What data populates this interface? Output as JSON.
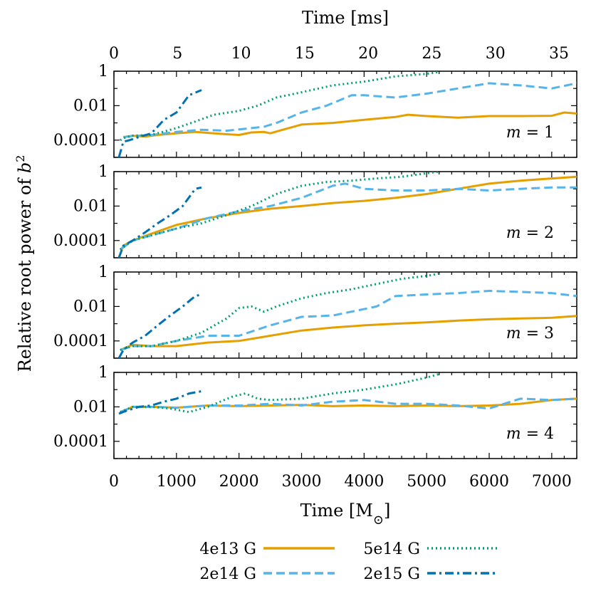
{
  "chart_data": {
    "type": "line",
    "top_axis": {
      "label": "Time [ms]",
      "ticks": [
        "0",
        "5",
        "10",
        "15",
        "20",
        "25",
        "30",
        "35"
      ],
      "range_ms": [
        0,
        36.4
      ]
    },
    "bottom_axis": {
      "label_prefix": "Time [M",
      "label_suffix": "]",
      "label_subscript": "⊙",
      "ticks": [
        "0",
        "1000",
        "2000",
        "3000",
        "4000",
        "5000",
        "6000",
        "7000"
      ],
      "xlim": [
        0,
        7400
      ]
    },
    "ylabel_prefix": "Relative root power of ",
    "ylabel_var": "b",
    "ylabel_sup": "2",
    "y_scale": "log",
    "ylim": [
      1e-05,
      1
    ],
    "y_ticks": [
      "1",
      "0.01",
      "0.0001"
    ],
    "series_meta": [
      {
        "name": "4e13 G",
        "color": "#E69F00",
        "dash": "solid"
      },
      {
        "name": "2e14 G",
        "color": "#56B4E9",
        "dash": "dashed"
      },
      {
        "name": "5e14 G",
        "color": "#009E73",
        "dash": "dotted"
      },
      {
        "name": "2e15 G",
        "color": "#0072B2",
        "dash": "dashdot"
      }
    ],
    "panels": [
      {
        "label_var": "m",
        "label_value": " = 1",
        "series": [
          {
            "name": "4e13 G",
            "x": [
              150,
              300,
              500,
              700,
              1000,
              1300,
              1600,
              1800,
              2000,
              2200,
              2400,
              2500,
              2700,
              3000,
              3500,
              4000,
              4500,
              4700,
              5000,
              5500,
              6000,
              6500,
              7000,
              7200,
              7400
            ],
            "y": [
              0.00015,
              0.00018,
              0.00016,
              0.0002,
              0.00025,
              0.0003,
              0.00025,
              0.00022,
              0.0002,
              0.00028,
              0.0003,
              0.00025,
              0.0004,
              0.0008,
              0.001,
              0.0015,
              0.0022,
              0.003,
              0.0025,
              0.002,
              0.0025,
              0.0025,
              0.0026,
              0.004,
              0.0035
            ]
          },
          {
            "name": "2e14 G",
            "x": [
              150,
              300,
              600,
              1000,
              1400,
              1800,
              2200,
              2400,
              2600,
              3000,
              3400,
              3800,
              4000,
              4500,
              5000,
              5500,
              6000,
              6500,
              7000,
              7400
            ],
            "y": [
              0.00015,
              0.00017,
              0.0002,
              0.0003,
              0.0004,
              0.00035,
              0.0005,
              0.0006,
              0.001,
              0.004,
              0.01,
              0.04,
              0.04,
              0.03,
              0.05,
              0.1,
              0.2,
              0.15,
              0.1,
              0.2
            ]
          },
          {
            "name": "5e14 G",
            "x": [
              100,
              200,
              300,
              600,
              1000,
              1300,
              1600,
              2000,
              2300,
              2600,
              3000,
              3500,
              4000,
              4500,
              5000,
              5200
            ],
            "y": [
              0.0001,
              0.00015,
              0.00018,
              0.0002,
              0.0005,
              0.0012,
              0.003,
              0.005,
              0.01,
              0.03,
              0.06,
              0.15,
              0.25,
              0.5,
              0.7,
              0.9
            ]
          },
          {
            "name": "2e15 G",
            "x": [
              80,
              150,
              250,
              400,
              600,
              800,
              1000,
              1200,
              1400
            ],
            "y": [
              1e-05,
              8e-05,
              0.0001,
              0.00015,
              0.00025,
              0.0015,
              0.004,
              0.04,
              0.08
            ]
          }
        ]
      },
      {
        "label_var": "m",
        "label_value": " = 2",
        "series": [
          {
            "name": "4e13 G",
            "x": [
              80,
              150,
              300,
              600,
              1000,
              1500,
              2000,
              2500,
              3000,
              3500,
              4000,
              4500,
              5000,
              5500,
              6000,
              6500,
              7000,
              7400
            ],
            "y": [
              1e-05,
              5e-05,
              0.0001,
              0.00025,
              0.0008,
              0.002,
              0.004,
              0.007,
              0.01,
              0.015,
              0.02,
              0.03,
              0.05,
              0.1,
              0.2,
              0.3,
              0.4,
              0.5
            ]
          },
          {
            "name": "2e14 G",
            "x": [
              100,
              300,
              600,
              1000,
              1500,
              2000,
              2500,
              3000,
              3500,
              3700,
              4000,
              4500,
              5000,
              5500,
              6000,
              6500,
              7000,
              7400
            ],
            "y": [
              3e-05,
              0.0001,
              0.0002,
              0.0005,
              0.002,
              0.005,
              0.01,
              0.03,
              0.15,
              0.2,
              0.1,
              0.08,
              0.08,
              0.1,
              0.08,
              0.1,
              0.12,
              0.12
            ]
          },
          {
            "name": "5e14 G",
            "x": [
              100,
              300,
              600,
              1000,
              1400,
              1800,
              2200,
              2600,
              3000,
              3400,
              3800,
              4200,
              4600,
              5000,
              5200
            ],
            "y": [
              3e-05,
              0.0001,
              0.0002,
              0.0005,
              0.001,
              0.003,
              0.01,
              0.05,
              0.15,
              0.25,
              0.3,
              0.4,
              0.5,
              0.8,
              1.0
            ]
          },
          {
            "name": "2e15 G",
            "x": [
              80,
              150,
              300,
              500,
              700,
              900,
              1100,
              1300,
              1400
            ],
            "y": [
              1e-05,
              5e-05,
              0.0001,
              0.0003,
              0.001,
              0.003,
              0.01,
              0.1,
              0.12
            ]
          }
        ]
      },
      {
        "label_var": "m",
        "label_value": " = 3",
        "series": [
          {
            "name": "4e13 G",
            "x": [
              100,
              300,
              600,
              1000,
              1500,
              2000,
              2500,
              3000,
              3500,
              4000,
              4500,
              5000,
              5500,
              6000,
              6500,
              7000,
              7400
            ],
            "y": [
              3e-05,
              6e-05,
              5e-05,
              5e-05,
              8e-05,
              0.0001,
              0.0002,
              0.0004,
              0.0006,
              0.0008,
              0.001,
              0.0012,
              0.0015,
              0.0018,
              0.002,
              0.0022,
              0.0028
            ]
          },
          {
            "name": "2e14 G",
            "x": [
              100,
              300,
              600,
              1000,
              1500,
              2000,
              2500,
              3000,
              3500,
              3800,
              4200,
              4500,
              5000,
              5500,
              6000,
              6500,
              7000,
              7400
            ],
            "y": [
              3e-05,
              5e-05,
              5e-05,
              0.0001,
              0.0002,
              0.0002,
              0.0008,
              0.0025,
              0.003,
              0.005,
              0.01,
              0.04,
              0.05,
              0.06,
              0.08,
              0.07,
              0.06,
              0.04
            ]
          },
          {
            "name": "5e14 G",
            "x": [
              100,
              300,
              600,
              1000,
              1400,
              1800,
              2000,
              2200,
              2400,
              2600,
              3000,
              3400,
              3800,
              4200,
              4600,
              5000,
              5200
            ],
            "y": [
              3e-05,
              5e-05,
              5e-05,
              0.0001,
              0.0003,
              0.002,
              0.008,
              0.01,
              0.005,
              0.01,
              0.03,
              0.06,
              0.1,
              0.2,
              0.4,
              0.6,
              0.8
            ]
          },
          {
            "name": "2e15 G",
            "x": [
              80,
              150,
              300,
              500,
              700,
              900,
              1100,
              1300,
              1400
            ],
            "y": [
              1e-05,
              3e-05,
              8e-05,
              0.0002,
              0.0008,
              0.003,
              0.01,
              0.04,
              0.05
            ]
          }
        ]
      },
      {
        "label_var": "m",
        "label_value": " = 4",
        "series": [
          {
            "name": "4e13 G",
            "x": [
              100,
              300,
              600,
              1000,
              1500,
              2000,
              2500,
              3000,
              3500,
              4000,
              4500,
              5000,
              5500,
              6000,
              6500,
              7000,
              7400
            ],
            "y": [
              0.005,
              0.01,
              0.01,
              0.009,
              0.012,
              0.011,
              0.012,
              0.013,
              0.011,
              0.012,
              0.011,
              0.012,
              0.011,
              0.012,
              0.015,
              0.025,
              0.03
            ]
          },
          {
            "name": "2e14 G",
            "x": [
              100,
              300,
              600,
              1000,
              1500,
              2000,
              2500,
              3000,
              3500,
              4000,
              4500,
              5000,
              5500,
              6000,
              6500,
              7000,
              7400
            ],
            "y": [
              0.005,
              0.01,
              0.01,
              0.009,
              0.012,
              0.012,
              0.015,
              0.012,
              0.02,
              0.025,
              0.015,
              0.015,
              0.012,
              0.008,
              0.03,
              0.025,
              0.03
            ]
          },
          {
            "name": "5e14 G",
            "x": [
              100,
              300,
              600,
              900,
              1200,
              1500,
              1700,
              1900,
              2100,
              2300,
              2500,
              3000,
              3500,
              4000,
              4500,
              5000,
              5200
            ],
            "y": [
              0.005,
              0.01,
              0.01,
              0.008,
              0.005,
              0.01,
              0.02,
              0.04,
              0.06,
              0.03,
              0.025,
              0.03,
              0.06,
              0.1,
              0.2,
              0.5,
              0.8
            ]
          },
          {
            "name": "2e15 G",
            "x": [
              80,
              200,
              400,
              600,
              800,
              1000,
              1200,
              1400
            ],
            "y": [
              0.004,
              0.006,
              0.01,
              0.012,
              0.02,
              0.03,
              0.06,
              0.08
            ]
          }
        ]
      }
    ]
  }
}
